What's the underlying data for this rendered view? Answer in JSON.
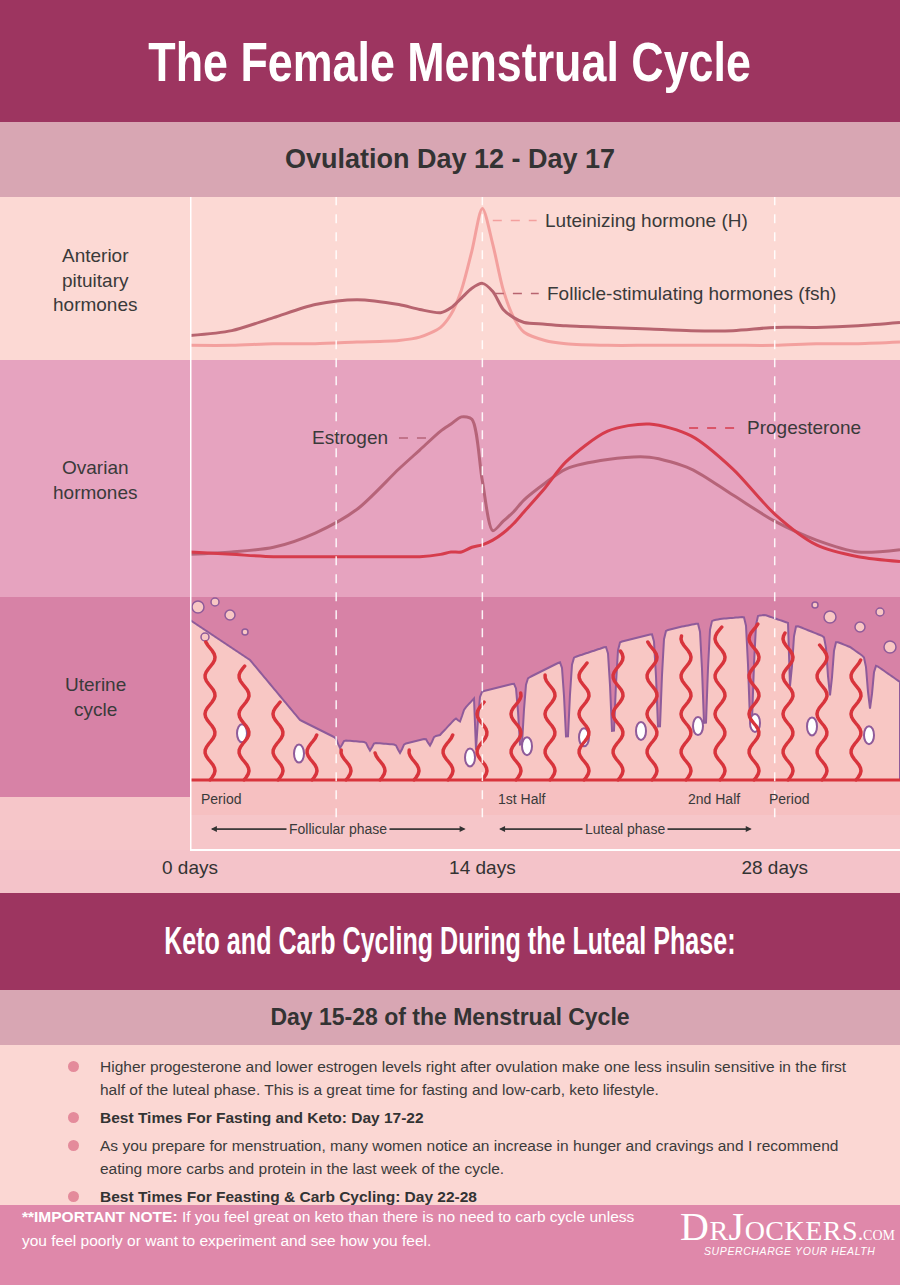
{
  "header": {
    "title": "The Female Menstrual Cycle",
    "subtitle": "Ovulation Day 12 - Day 17"
  },
  "chart_data": {
    "type": "line",
    "x": [
      0,
      2,
      4,
      6,
      8,
      10,
      11,
      12,
      12.5,
      13,
      13.5,
      14,
      14.5,
      15,
      15.5,
      16,
      17,
      18,
      20,
      22,
      24,
      26,
      28,
      30,
      32,
      34
    ],
    "xlim": [
      0,
      34
    ],
    "xticks": [
      {
        "value": 0,
        "label": "0 days"
      },
      {
        "value": 14,
        "label": "14 days"
      },
      {
        "value": 28,
        "label": "28 days"
      }
    ],
    "ylabel": "Anterior pituitary hormones",
    "ylim": [
      0,
      100
    ],
    "y2label": "Ovarian hormones",
    "y2lim": [
      0,
      100
    ],
    "tick_labels": "x",
    "grid": false,
    "dividers": [
      7,
      14,
      28
    ],
    "series": [
      {
        "name": "Luteinizing hormone (H)",
        "color": "#f3a09e",
        "values": [
          9,
          9,
          10,
          10,
          11,
          12,
          14,
          20,
          28,
          43,
          67,
          93,
          71,
          43,
          26,
          17,
          12,
          10,
          9,
          9,
          9,
          9,
          9,
          10,
          10,
          11
        ]
      },
      {
        "name": "Follicle-stimulating hormones (fsh)",
        "color": "#b7646f",
        "values": [
          15,
          18,
          26,
          34,
          37,
          34,
          31,
          29,
          32,
          38,
          44,
          47,
          42,
          31,
          26,
          23,
          22,
          21,
          20,
          19,
          18,
          18,
          20,
          20,
          21,
          23
        ]
      },
      {
        "name": "Estrogen",
        "color": "#b66479",
        "axis": "y2",
        "values": [
          18,
          19,
          21,
          27,
          37,
          54,
          62,
          70,
          73,
          76,
          75,
          49,
          28,
          32,
          36,
          41,
          48,
          54,
          58,
          59,
          54,
          43,
          32,
          24,
          19,
          20
        ]
      },
      {
        "name": "Progesterone",
        "color": "#d63c4c",
        "axis": "y2",
        "values": [
          19,
          18,
          17,
          17,
          17,
          17,
          17,
          18,
          19,
          19,
          21,
          22,
          24,
          27,
          31,
          36,
          46,
          57,
          70,
          73,
          68,
          54,
          35,
          22,
          17,
          15
        ]
      }
    ],
    "uterine_label": "Uterine cycle",
    "annotations": [
      {
        "text": "Period",
        "x": 1.5
      },
      {
        "text": "1st Half",
        "x": 15.9
      },
      {
        "text": "2nd Half",
        "x": 25.1
      },
      {
        "text": "Period",
        "x": 28.7
      }
    ],
    "phases": [
      {
        "text": "Follicular phase",
        "from": 1,
        "to": 13.2
      },
      {
        "text": "Luteal phase",
        "from": 14.8,
        "to": 26.9
      }
    ]
  },
  "keto": {
    "title": "Keto and Carb Cycling During the Luteal Phase:",
    "subtitle": "Day 15-28 of the Menstrual Cycle",
    "bullets": [
      {
        "text": "Higher progesterone and lower estrogen levels right after ovulation make one less insulin sensitive in the first half of the luteal phase. This is a great time for fasting and low-carb, keto lifestyle."
      },
      {
        "heading": "Best Times For Fasting and Keto: Day 17-22"
      },
      {
        "text": "As you prepare for menstruation, many women notice an increase in hunger and cravings and I recommend eating more carbs and protein in the last week of the cycle."
      },
      {
        "heading": "Best Times For Feasting & Carb Cycling: Day 22-28"
      }
    ]
  },
  "footer": {
    "note_label": "**IMPORTANT NOTE:",
    "note": "If you feel great on keto than there is no need to carb cycle unless you feel poorly or want to experiment and see how you feel.",
    "logo": "DrJockers",
    "logo_suffix": ".com",
    "tagline": "SUPERCHARGE YOUR HEALTH"
  }
}
